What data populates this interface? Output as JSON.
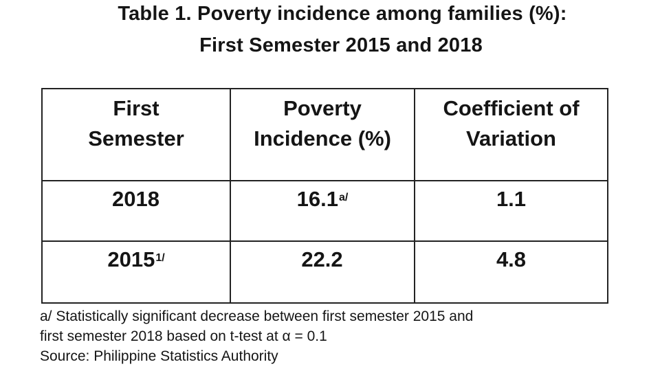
{
  "title": {
    "line1": "Table 1. Poverty incidence among families (%):",
    "line2": "First Semester 2015 and 2018"
  },
  "table": {
    "headers": [
      {
        "line1": "First",
        "line2": "Semester"
      },
      {
        "line1": "Poverty",
        "line2": "Incidence (%)"
      },
      {
        "line1": "Coefficient of",
        "line2": "Variation"
      }
    ],
    "rows": [
      {
        "semester": "2018",
        "semester_sup": "",
        "incidence": "16.1",
        "incidence_sup": "a/",
        "cv": "1.1"
      },
      {
        "semester": "2015",
        "semester_sup": "1/",
        "incidence": "22.2",
        "incidence_sup": "",
        "cv": "4.8"
      }
    ]
  },
  "notes": {
    "line1": "a/ Statistically significant decrease between first semester 2015 and",
    "line2": "first semester 2018 based on t-test at α = 0.1",
    "source": "Source: Philippine Statistics Authority"
  }
}
